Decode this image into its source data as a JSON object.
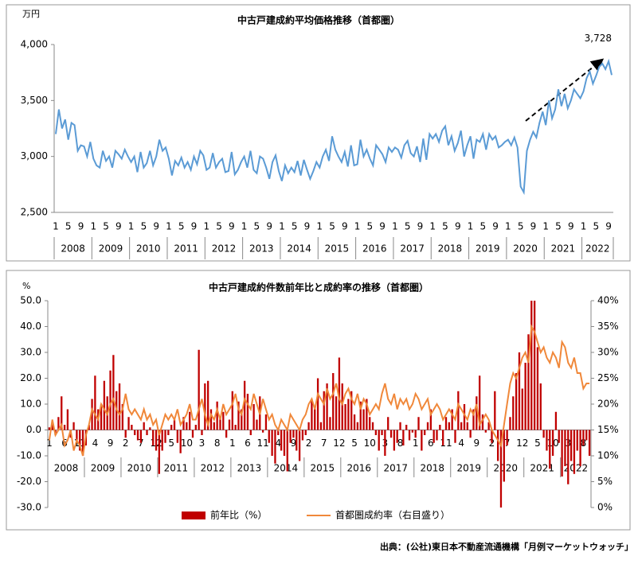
{
  "chart_data": [
    {
      "type": "line",
      "title": "中古戸建成約平均価格推移（首都圏）",
      "y_label": "万円",
      "color": "#5b9bd5",
      "categories": [
        "1",
        null,
        null,
        null,
        "5",
        null,
        null,
        null,
        "9",
        null,
        null,
        null,
        "1",
        null,
        null,
        null,
        "5",
        null,
        null,
        null,
        "9",
        null,
        null,
        null,
        "1",
        null,
        null,
        null,
        "5",
        null,
        null,
        null,
        "9",
        null,
        null,
        null,
        "1",
        null,
        null,
        null,
        "5",
        null,
        null,
        null,
        "9",
        null,
        null,
        null,
        "1",
        null,
        null,
        null,
        "5",
        null,
        null,
        null,
        "9",
        null,
        null,
        null,
        "1",
        null,
        null,
        null,
        "5",
        null,
        null,
        null,
        "9",
        null,
        null,
        null,
        "1",
        null,
        null,
        null,
        "5",
        null,
        null,
        null,
        "9",
        null,
        null,
        null,
        "1",
        null,
        null,
        null,
        "5",
        null,
        null,
        null,
        "9",
        null,
        null,
        null,
        "1",
        null,
        null,
        null,
        "5",
        null,
        null,
        null,
        "9",
        null,
        null,
        null,
        "1",
        null,
        null,
        null,
        "5",
        null,
        null,
        null,
        "9",
        null,
        null,
        null,
        "1",
        null,
        null,
        null,
        "5",
        null,
        null,
        null,
        "9",
        null,
        null,
        null,
        "1",
        null,
        null,
        null,
        "5",
        null,
        null,
        null,
        "9",
        null,
        null,
        null,
        "1",
        null,
        null,
        null,
        "5",
        null,
        null,
        null,
        "9",
        null,
        null,
        null,
        "1",
        null,
        null,
        null,
        "5",
        null,
        null,
        null,
        "9",
        null,
        null,
        null,
        "1",
        null,
        null,
        null,
        "5",
        null,
        null,
        null,
        "9",
        null
      ],
      "years": [
        "2008",
        "2009",
        "2010",
        "2011",
        "2012",
        "2013",
        "2014",
        "2015",
        "2016",
        "2017",
        "2018",
        "2019",
        "2020",
        "2021",
        "2022"
      ],
      "values": [
        3200,
        3420,
        3250,
        3330,
        3150,
        3300,
        3280,
        3050,
        3100,
        3090,
        3000,
        3130,
        2980,
        2920,
        2900,
        3050,
        2960,
        3000,
        2900,
        3050,
        3020,
        2980,
        3060,
        3000,
        2950,
        3000,
        2860,
        3040,
        2900,
        2940,
        3050,
        2920,
        3000,
        3150,
        3050,
        3080,
        2980,
        2830,
        2960,
        2920,
        2990,
        2900,
        2950,
        2880,
        3000,
        2930,
        3050,
        3010,
        2880,
        2900,
        3030,
        2900,
        2950,
        2980,
        2860,
        2870,
        3040,
        2840,
        2880,
        2950,
        3000,
        2900,
        3050,
        2880,
        2850,
        3000,
        2980,
        2900,
        2800,
        2950,
        3010,
        2870,
        2780,
        2920,
        2850,
        2900,
        2860,
        2960,
        2830,
        2970,
        2880,
        2800,
        2870,
        2950,
        2900,
        3000,
        3060,
        2960,
        3180,
        3060,
        3000,
        2950,
        3040,
        2910,
        3100,
        2920,
        2930,
        3150,
        3000,
        3060,
        2980,
        2920,
        3100,
        3060,
        3020,
        2950,
        3080,
        3040,
        3080,
        3060,
        2990,
        3100,
        3140,
        3030,
        3000,
        3090,
        2950,
        3160,
        2970,
        3200,
        3160,
        3200,
        3130,
        3230,
        3270,
        3100,
        3180,
        3050,
        3120,
        3230,
        3000,
        3100,
        3180,
        2980,
        3150,
        3130,
        3200,
        3060,
        3200,
        3150,
        3180,
        3080,
        3100,
        3130,
        3150,
        3100,
        3170,
        3080,
        2730,
        2680,
        3050,
        3150,
        3220,
        3170,
        3300,
        3400,
        3280,
        3500,
        3340,
        3420,
        3600,
        3450,
        3560,
        3430,
        3500,
        3600,
        3560,
        3520,
        3580,
        3700,
        3760,
        3650,
        3720,
        3800,
        3830,
        3780,
        3850,
        3728
      ],
      "value_labels": [
        null,
        null,
        null,
        null,
        null,
        null,
        null,
        null,
        null,
        null,
        null,
        null,
        null,
        null,
        null,
        null,
        null,
        null,
        null,
        null,
        null,
        null,
        null,
        null,
        null,
        null,
        null,
        null,
        null,
        null,
        null,
        null,
        null,
        null,
        null,
        null,
        null,
        null,
        null,
        null,
        null,
        null,
        null,
        null,
        null,
        null,
        null,
        null,
        null,
        null,
        null,
        null,
        null,
        null,
        null,
        null,
        null,
        null,
        null,
        null,
        null,
        null,
        null,
        null,
        null,
        null,
        null,
        null,
        null,
        null,
        null,
        null,
        null,
        null,
        null,
        null,
        null,
        null,
        null,
        null,
        null,
        null,
        null,
        null,
        null,
        null,
        null,
        null,
        null,
        null,
        null,
        null,
        null,
        null,
        null,
        null,
        null,
        null,
        null,
        null,
        null,
        null,
        null,
        null,
        null,
        null,
        null,
        null,
        null,
        null,
        null,
        null,
        null,
        null,
        null,
        null,
        null,
        null,
        null,
        null,
        null,
        null,
        null,
        null,
        null,
        null,
        null,
        null,
        null,
        null,
        null,
        null,
        null,
        null,
        null,
        null,
        null,
        null,
        null,
        null,
        null,
        null,
        null,
        null,
        null,
        null,
        null,
        null,
        null,
        null,
        null,
        null,
        null,
        null,
        null,
        null,
        null,
        null,
        null,
        null,
        null,
        null,
        null,
        null,
        null,
        null,
        null,
        null,
        null,
        null,
        null,
        null,
        null,
        null,
        null,
        null,
        null,
        "3,728"
      ],
      "ylim": [
        2500,
        4000
      ],
      "yticks": [
        {
          "value": 2500,
          "label": "2,500"
        },
        {
          "value": 3000,
          "label": "3,000"
        },
        {
          "value": 3500,
          "label": "3,500"
        },
        {
          "value": 4000,
          "label": "4,000"
        }
      ]
    },
    {
      "type": "bar_line",
      "title": "中古戸建成約件数前年比と成約率の推移（首都圏）",
      "y_label": "%",
      "categories": [
        "1",
        null,
        null,
        null,
        null,
        "6",
        null,
        null,
        null,
        null,
        "11",
        null,
        null,
        null,
        null,
        "4",
        null,
        null,
        null,
        null,
        "9",
        null,
        null,
        null,
        null,
        "2",
        null,
        null,
        null,
        null,
        "7",
        null,
        null,
        null,
        null,
        "12",
        null,
        null,
        null,
        null,
        "5",
        null,
        null,
        null,
        null,
        "10",
        null,
        null,
        null,
        null,
        "3",
        null,
        null,
        null,
        null,
        "8",
        null,
        null,
        null,
        null,
        "1",
        null,
        null,
        null,
        null,
        "6",
        null,
        null,
        null,
        null,
        "11",
        null,
        null,
        null,
        null,
        "4",
        null,
        null,
        null,
        null,
        "9",
        null,
        null,
        null,
        null,
        "2",
        null,
        null,
        null,
        null,
        "7",
        null,
        null,
        null,
        null,
        "12",
        null,
        null,
        null,
        null,
        "5",
        null,
        null,
        null,
        null,
        "10",
        null,
        null,
        null,
        null,
        "3",
        null,
        null,
        null,
        null,
        "8",
        null,
        null,
        null,
        null,
        "1",
        null,
        null,
        null,
        null,
        "6",
        null,
        null,
        null,
        null,
        "11",
        null,
        null,
        null,
        null,
        "4",
        null,
        null,
        null,
        null,
        "9",
        null,
        null,
        null,
        null,
        "2",
        null,
        null,
        null,
        null,
        "7",
        null,
        null,
        null,
        null,
        "12",
        null,
        null,
        null,
        null,
        "5",
        null,
        null,
        null,
        null,
        "10",
        null,
        null,
        null,
        null,
        "3",
        null,
        null,
        null,
        null,
        "8",
        null,
        null
      ],
      "years": [
        "2008",
        "2009",
        "2010",
        "2011",
        "2012",
        "2013",
        "2014",
        "2015",
        "2016",
        "2017",
        "2018",
        "2019",
        "2020",
        "2021",
        "2022"
      ],
      "series": [
        {
          "name": "前年比（%）",
          "type": "bar",
          "color": "#c00000",
          "values": [
            1,
            3,
            -2,
            5,
            13,
            2,
            8,
            -3,
            3,
            -5,
            -8,
            -10,
            -6,
            2,
            12,
            21,
            8,
            10,
            19,
            13,
            23,
            29,
            15,
            18,
            10,
            -3,
            5,
            2,
            -2,
            -4,
            -5,
            3,
            -2,
            1,
            -6,
            -8,
            -17,
            -8,
            -5,
            -2,
            2,
            4,
            -5,
            -9,
            5,
            3,
            7,
            -3,
            2,
            31,
            -2,
            18,
            19,
            8,
            3,
            11,
            5,
            7,
            -3,
            4,
            15,
            2,
            11,
            8,
            19,
            14,
            -2,
            10,
            4,
            13,
            -1,
            6,
            -5,
            -10,
            -13,
            -2,
            -8,
            -10,
            -16,
            -5,
            -3,
            -8,
            -12,
            -4,
            -2,
            3,
            12,
            8,
            20,
            3,
            15,
            18,
            5,
            22,
            13,
            28,
            18,
            10,
            12,
            15,
            6,
            3,
            11,
            8,
            12,
            5,
            3,
            -2,
            -8,
            -2,
            -10,
            5,
            -3,
            -8,
            -5,
            3,
            -6,
            2,
            -4,
            -1,
            -3,
            5,
            -8,
            -2,
            3,
            8,
            -5,
            -4,
            2,
            -6,
            5,
            3,
            8,
            -5,
            15,
            3,
            10,
            3,
            -3,
            8,
            13,
            21,
            6,
            -1,
            3,
            -5,
            15,
            -12,
            -30,
            -20,
            -6,
            5,
            13,
            22,
            30,
            16,
            26,
            37,
            50,
            50,
            32,
            18,
            -3,
            -8,
            -15,
            -10,
            7,
            -5,
            -18,
            -14,
            -21,
            -12,
            -17,
            -8,
            -14,
            -6,
            -4,
            -10
          ]
        },
        {
          "name": "首都圏成約率（右目盛り）",
          "type": "line",
          "axis": "y2",
          "color": "#f0883a",
          "values": [
            13,
            17,
            14,
            15,
            16,
            12,
            13,
            15,
            11,
            13,
            12,
            10,
            14,
            16,
            19,
            18,
            17,
            20,
            19,
            18,
            20,
            21,
            19,
            18,
            19,
            22,
            19,
            18,
            19,
            18,
            17,
            19,
            17,
            18,
            16,
            17,
            14,
            16,
            18,
            17,
            18,
            17,
            19,
            16,
            17,
            18,
            20,
            17,
            17,
            19,
            21,
            18,
            16,
            18,
            17,
            19,
            17,
            20,
            18,
            19,
            20,
            22,
            19,
            18,
            21,
            20,
            19,
            22,
            20,
            18,
            21,
            19,
            17,
            18,
            16,
            15,
            17,
            16,
            15,
            18,
            17,
            16,
            15,
            17,
            18,
            20,
            21,
            19,
            22,
            21,
            20,
            23,
            21,
            22,
            24,
            21,
            20,
            22,
            23,
            21,
            20,
            22,
            19,
            21,
            20,
            18,
            19,
            20,
            19,
            22,
            24,
            21,
            20,
            22,
            19,
            21,
            20,
            21,
            19,
            20,
            22,
            21,
            19,
            20,
            21,
            18,
            19,
            20,
            19,
            17,
            18,
            19,
            18,
            17,
            20,
            19,
            18,
            17,
            19,
            18,
            20,
            16,
            17,
            18,
            17,
            15,
            14,
            13,
            12,
            16,
            20,
            24,
            26,
            25,
            27,
            29,
            30,
            28,
            35,
            34,
            32,
            30,
            31,
            29,
            28,
            30,
            29,
            27,
            32,
            31,
            28,
            27,
            29,
            26,
            26,
            23,
            24,
            24
          ]
        }
      ],
      "ylim": [
        -30,
        50
      ],
      "yticks": [
        {
          "value": -30,
          "label": "-30.0"
        },
        {
          "value": -20,
          "label": "-20.0"
        },
        {
          "value": -10,
          "label": "-10.0"
        },
        {
          "value": 0,
          "label": "0.0"
        },
        {
          "value": 10,
          "label": "10.0"
        },
        {
          "value": 20,
          "label": "20.0"
        },
        {
          "value": 30,
          "label": "30.0"
        },
        {
          "value": 40,
          "label": "40.0"
        },
        {
          "value": 50,
          "label": "50.0"
        }
      ],
      "y2lim": [
        0,
        40
      ],
      "y2ticks": [
        {
          "value": 0,
          "label": "0%"
        },
        {
          "value": 5,
          "label": "5%"
        },
        {
          "value": 10,
          "label": "10%"
        },
        {
          "value": 15,
          "label": "15%"
        },
        {
          "value": 20,
          "label": "20%"
        },
        {
          "value": 25,
          "label": "25%"
        },
        {
          "value": 30,
          "label": "30%"
        },
        {
          "value": 35,
          "label": "35%"
        },
        {
          "value": 40,
          "label": "40%"
        }
      ]
    }
  ],
  "source": "出典：(公社)東日本不動産流通機構「月例マーケットウォッチ」"
}
